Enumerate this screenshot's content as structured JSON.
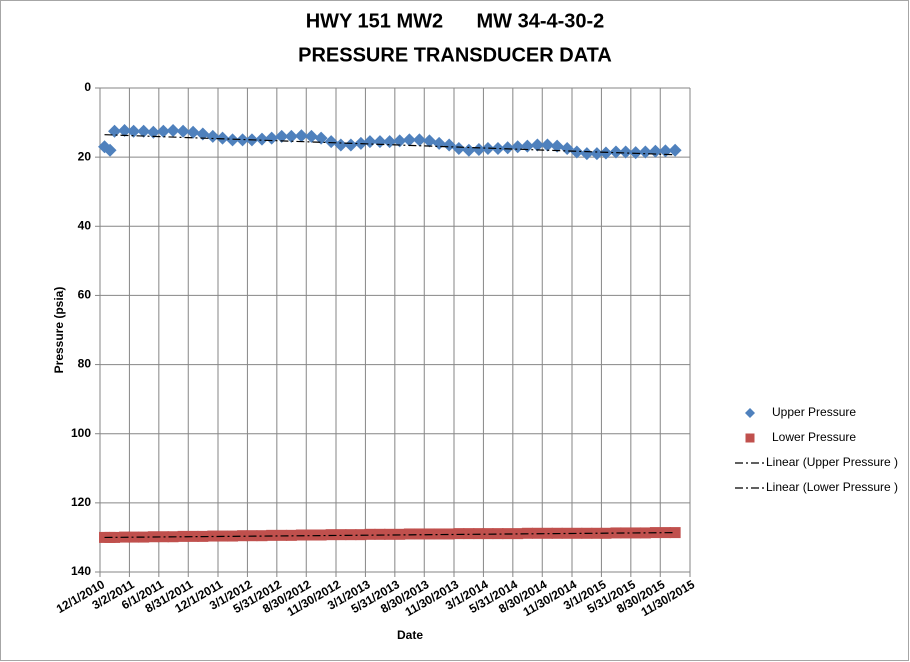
{
  "chart_data": {
    "type": "scatter",
    "title": [
      "HWY 151 MW2      MW 34-4-30-2",
      "PRESSURE TRANSDUCER DATA"
    ],
    "x_label": "Date",
    "y_label": "Pressure (psia)",
    "y_inverted": true,
    "grid": true,
    "legend": "right",
    "xlim": [
      "12/1/2010",
      "11/30/2015"
    ],
    "xticks": [
      "12/1/2010",
      "3/2/2011",
      "6/1/2011",
      "8/31/2011",
      "12/1/2011",
      "3/1/2012",
      "5/31/2012",
      "8/30/2012",
      "11/30/2012",
      "3/1/2013",
      "5/31/2013",
      "8/30/2013",
      "11/30/2013",
      "3/1/2014",
      "5/31/2014",
      "8/30/2014",
      "11/30/2014",
      "3/1/2015",
      "5/31/2015",
      "8/30/2015",
      "11/30/2015"
    ],
    "ylim": [
      0,
      140
    ],
    "yticks": [
      0,
      20,
      40,
      60,
      80,
      100,
      120,
      140
    ],
    "x": [
      "12/15/2010",
      "1/1/2011",
      "1/15/2011",
      "2/15/2011",
      "3/15/2011",
      "4/15/2011",
      "5/15/2011",
      "6/15/2011",
      "7/15/2011",
      "8/15/2011",
      "9/15/2011",
      "10/15/2011",
      "11/15/2011",
      "12/15/2011",
      "1/15/2012",
      "2/15/2012",
      "3/15/2012",
      "4/15/2012",
      "5/15/2012",
      "6/15/2012",
      "7/15/2012",
      "8/15/2012",
      "9/15/2012",
      "10/15/2012",
      "11/15/2012",
      "12/15/2012",
      "1/15/2013",
      "2/15/2013",
      "3/15/2013",
      "4/15/2013",
      "5/15/2013",
      "6/15/2013",
      "7/15/2013",
      "8/15/2013",
      "9/15/2013",
      "10/15/2013",
      "11/15/2013",
      "12/15/2013",
      "1/15/2014",
      "2/15/2014",
      "3/15/2014",
      "4/15/2014",
      "5/15/2014",
      "6/15/2014",
      "7/15/2014",
      "8/15/2014",
      "9/15/2014",
      "10/15/2014",
      "11/15/2014",
      "12/15/2014",
      "1/15/2015",
      "2/15/2015",
      "3/15/2015",
      "4/15/2015",
      "5/15/2015",
      "6/15/2015",
      "7/15/2015",
      "8/15/2015",
      "9/15/2015",
      "10/15/2015"
    ],
    "series": [
      {
        "name": "Upper Pressure",
        "color": "#4f81bd",
        "marker": "diamond",
        "values": [
          17,
          18,
          12.5,
          12.3,
          12.5,
          12.5,
          12.8,
          12.5,
          12.3,
          12.5,
          12.8,
          13.3,
          14,
          14.5,
          15,
          15,
          15,
          14.8,
          14.5,
          14,
          14,
          13.8,
          14,
          14.5,
          15.5,
          16.5,
          16.5,
          16,
          15.5,
          15.5,
          15.5,
          15.3,
          15,
          15,
          15.3,
          16,
          16.5,
          17.5,
          18,
          17.8,
          17.5,
          17.5,
          17.3,
          17,
          16.8,
          16.5,
          16.5,
          16.8,
          17.5,
          18.5,
          19,
          19,
          18.8,
          18.5,
          18.5,
          18.7,
          18.5,
          18.3,
          18.2,
          18
        ]
      },
      {
        "name": "Lower Pressure",
        "color": "#c0504d",
        "marker": "square",
        "values": [
          130,
          130,
          130,
          129.9,
          129.9,
          129.9,
          129.8,
          129.8,
          129.8,
          129.7,
          129.7,
          129.7,
          129.6,
          129.6,
          129.6,
          129.5,
          129.5,
          129.5,
          129.4,
          129.4,
          129.4,
          129.3,
          129.3,
          129.3,
          129.2,
          129.2,
          129.2,
          129.2,
          129.1,
          129.1,
          129.1,
          129.1,
          129,
          129,
          129,
          129,
          129,
          128.9,
          128.9,
          128.9,
          128.9,
          128.9,
          128.9,
          128.9,
          128.8,
          128.8,
          128.8,
          128.8,
          128.8,
          128.8,
          128.8,
          128.8,
          128.8,
          128.7,
          128.7,
          128.7,
          128.7,
          128.6,
          128.6,
          128.6
        ]
      },
      {
        "name": "Linear (Upper Pressure )",
        "color": "#000000",
        "marker": "trendline",
        "x": [
          "12/15/2010",
          "10/15/2015"
        ],
        "values": [
          13.5,
          19.3
        ]
      },
      {
        "name": "Linear (Lower Pressure )",
        "color": "#000000",
        "marker": "trendline",
        "x": [
          "12/15/2010",
          "10/15/2015"
        ],
        "values": [
          130,
          128.6
        ]
      }
    ]
  }
}
